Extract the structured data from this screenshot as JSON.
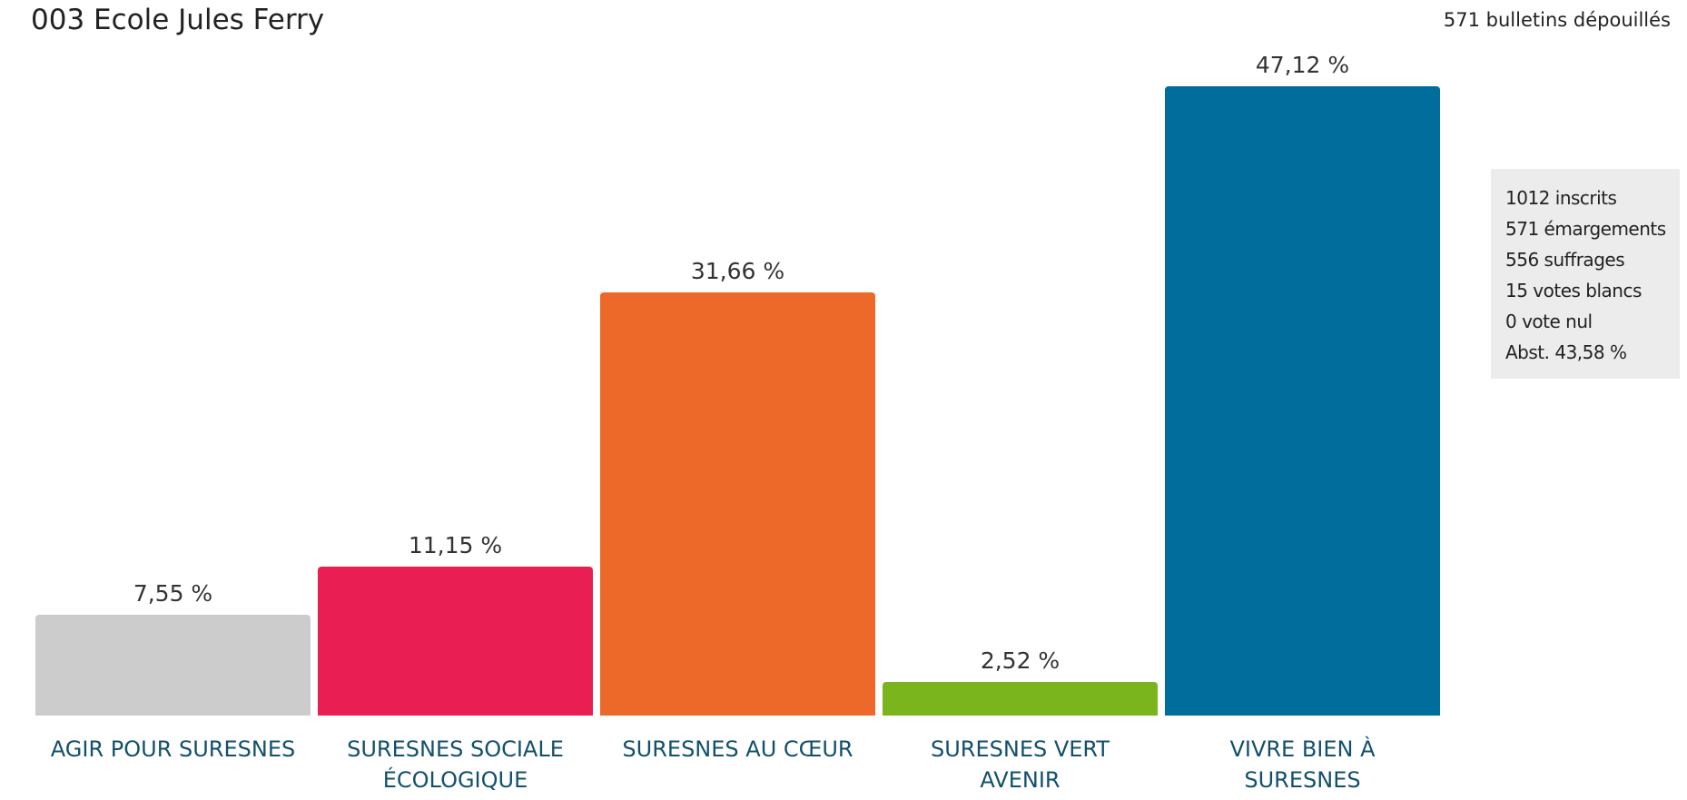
{
  "chart_data": {
    "type": "bar",
    "title": "003 Ecole Jules Ferry",
    "subtitle": "571 bulletins dépouillés",
    "categories": [
      "AGIR POUR SURESNES",
      "SURESNES SOCIALE ÉCOLOGIQUE",
      "SURESNES AU CŒUR",
      "SURESNES VERT AVENIR",
      "VIVRE BIEN À SURESNES"
    ],
    "values": [
      7.55,
      11.15,
      31.66,
      2.52,
      47.12
    ],
    "value_labels": [
      "7,55 %",
      "11,15 %",
      "31,66 %",
      "2,52 %",
      "47,12 %"
    ],
    "colors": [
      "#cccccc",
      "#e91e53",
      "#ec6929",
      "#7ab51d",
      "#006d9d"
    ],
    "stats": [
      "1012 inscrits",
      "571 émargements",
      "556 suffrages",
      "15 votes blancs",
      "0 vote nul",
      "Abst. 43,58 %"
    ]
  }
}
